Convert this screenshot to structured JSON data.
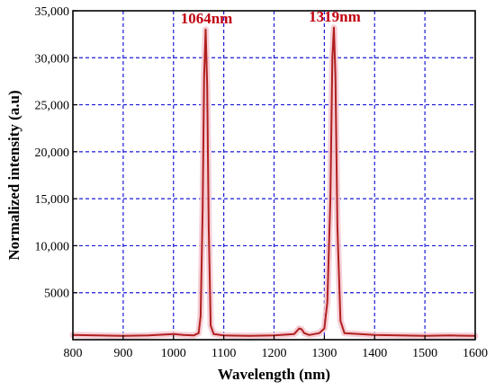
{
  "chart_data": {
    "type": "line",
    "title": "",
    "xlabel": "Wavelength (nm)",
    "ylabel": "Normalized intensity (a.u)",
    "xlim": [
      800,
      1600
    ],
    "ylim": [
      0,
      35000
    ],
    "x_ticks": [
      800,
      900,
      1000,
      1100,
      1200,
      1300,
      1400,
      1500,
      1600
    ],
    "x_tick_labels": [
      "800",
      "900",
      "1000",
      "1100",
      "1200",
      "1300",
      "1400",
      "1500",
      "1600"
    ],
    "y_ticks": [
      5000,
      10000,
      15000,
      20000,
      25000,
      30000,
      35000
    ],
    "y_tick_labels": [
      "5000",
      "10,000",
      "15,000",
      "20,000",
      "25,000",
      "30,000",
      "35,000"
    ],
    "grid": true,
    "legend": "none",
    "series": [
      {
        "color": "#b0201f",
        "x": [
          800,
          850,
          900,
          950,
          1000,
          1020,
          1040,
          1050,
          1054,
          1058,
          1061,
          1064,
          1067,
          1070,
          1074,
          1080,
          1100,
          1150,
          1200,
          1240,
          1250,
          1255,
          1260,
          1270,
          1290,
          1300,
          1306,
          1312,
          1316,
          1319,
          1322,
          1326,
          1332,
          1340,
          1400,
          1450,
          1500,
          1550,
          1600
        ],
        "y": [
          500,
          450,
          400,
          450,
          600,
          500,
          450,
          700,
          2500,
          14000,
          28000,
          33000,
          27000,
          12000,
          1500,
          600,
          450,
          400,
          450,
          600,
          1200,
          1100,
          700,
          500,
          700,
          1200,
          4000,
          15000,
          30000,
          33200,
          28000,
          12000,
          2000,
          700,
          500,
          450,
          400,
          450,
          400
        ]
      }
    ],
    "annotations": [
      {
        "text": "1064nm",
        "x": 1064,
        "y": 33000
      },
      {
        "text": "1319nm",
        "x": 1319,
        "y": 33200
      }
    ],
    "colors": {
      "line": "#b0201f",
      "halo": "#f4c7d0",
      "grid": "#1a1ad6",
      "annotation": "#c0000f"
    }
  }
}
